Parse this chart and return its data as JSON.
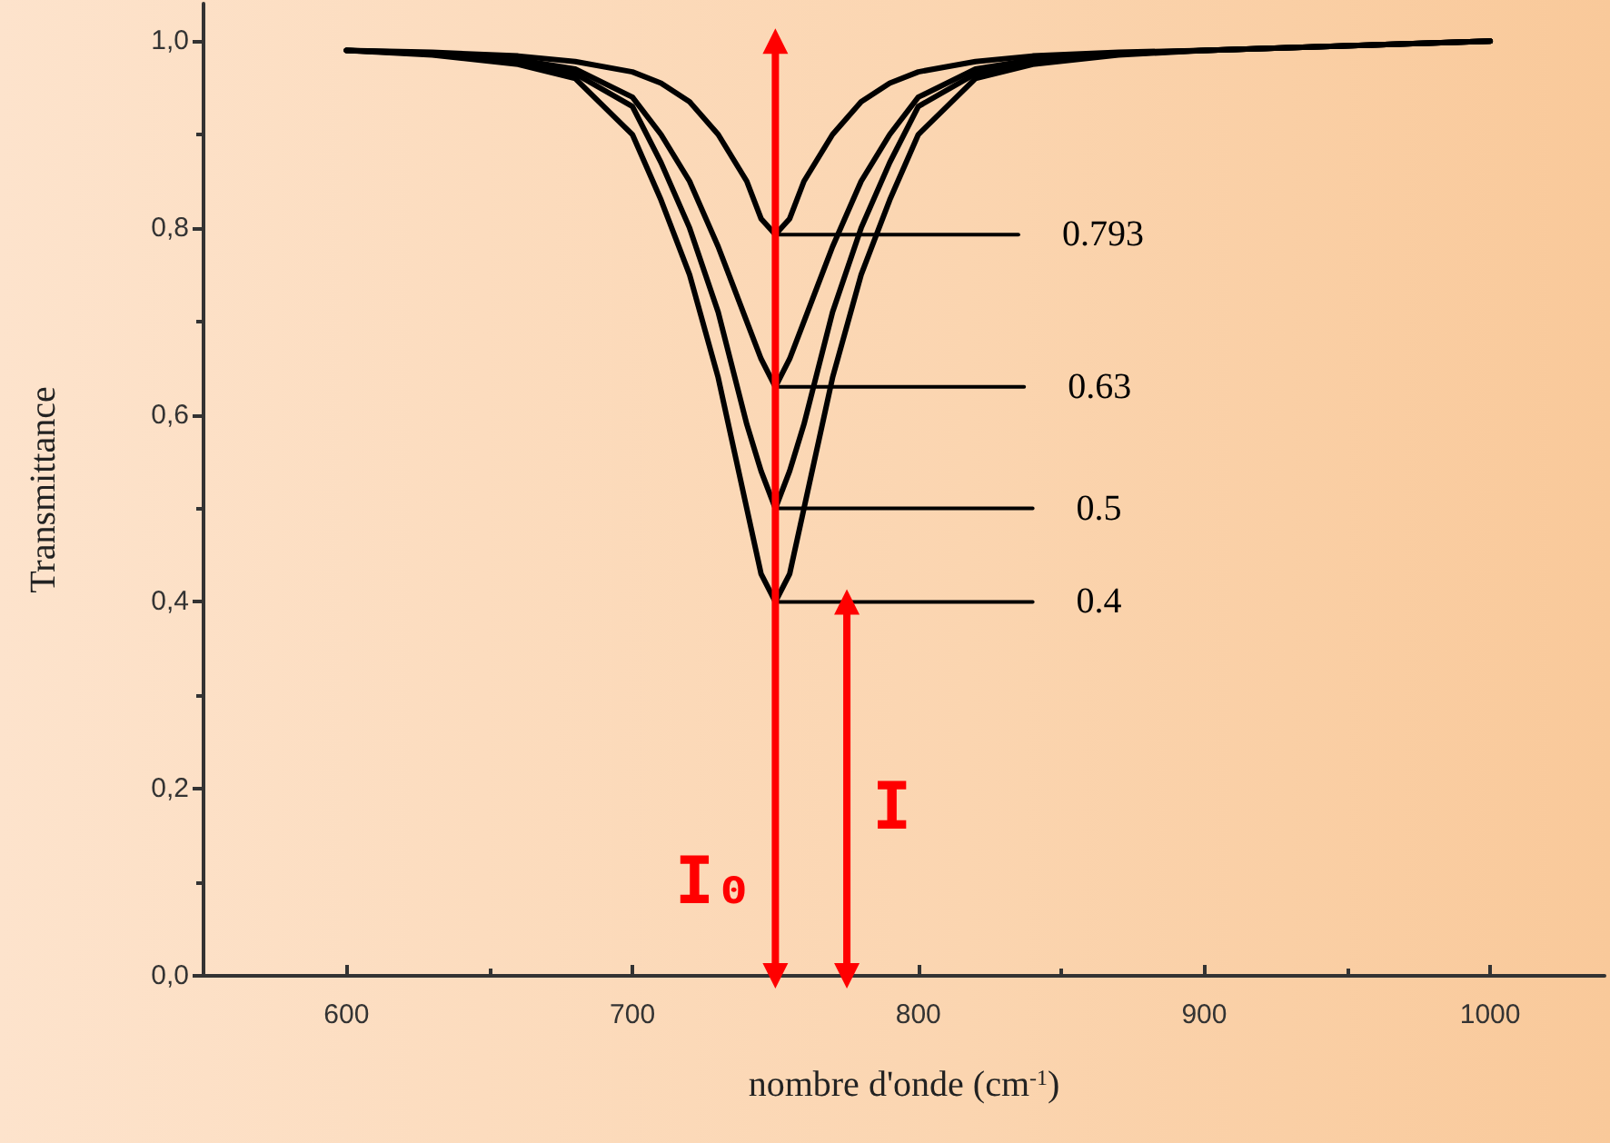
{
  "chart_data": {
    "type": "line",
    "xlabel": "nombre d'onde (cm$^{-1}$)",
    "ylabel": "Transmittance",
    "x": [
      600,
      630,
      660,
      680,
      700,
      710,
      720,
      730,
      735,
      740,
      745,
      750,
      755,
      760,
      765,
      770,
      780,
      790,
      800,
      820,
      840,
      870,
      900,
      1000
    ],
    "series": [
      {
        "color": "#000000",
        "values": [
          0.99,
          0.985,
          0.975,
          0.96,
          0.9,
          0.83,
          0.75,
          0.64,
          0.57,
          0.5,
          0.43,
          0.4,
          0.43,
          0.5,
          0.57,
          0.64,
          0.75,
          0.83,
          0.9,
          0.96,
          0.975,
          0.985,
          0.99,
          1.0
        ]
      },
      {
        "color": "#000000",
        "values": [
          0.99,
          0.986,
          0.977,
          0.965,
          0.93,
          0.87,
          0.8,
          0.71,
          0.65,
          0.59,
          0.54,
          0.5,
          0.54,
          0.59,
          0.65,
          0.71,
          0.8,
          0.87,
          0.93,
          0.965,
          0.977,
          0.986,
          0.99,
          1.0
        ]
      },
      {
        "color": "#000000",
        "values": [
          0.99,
          0.987,
          0.98,
          0.97,
          0.94,
          0.9,
          0.85,
          0.78,
          0.74,
          0.7,
          0.66,
          0.63,
          0.66,
          0.7,
          0.74,
          0.78,
          0.85,
          0.9,
          0.94,
          0.97,
          0.98,
          0.987,
          0.99,
          1.0
        ]
      },
      {
        "color": "#000000",
        "values": [
          0.99,
          0.988,
          0.984,
          0.978,
          0.967,
          0.955,
          0.935,
          0.9,
          0.875,
          0.85,
          0.81,
          0.793,
          0.81,
          0.85,
          0.875,
          0.9,
          0.935,
          0.955,
          0.967,
          0.978,
          0.984,
          0.988,
          0.99,
          1.0
        ]
      },
      {
        "color": "#000000",
        "x": [
          750,
          835
        ],
        "values": [
          0.793,
          0.793
        ],
        "value_labels": [
          null,
          "0.793"
        ]
      },
      {
        "color": "#000000",
        "x": [
          750,
          837
        ],
        "values": [
          0.63,
          0.63
        ],
        "value_labels": [
          null,
          "0.63"
        ]
      },
      {
        "color": "#000000",
        "x": [
          750,
          840
        ],
        "values": [
          0.5,
          0.5
        ],
        "value_labels": [
          null,
          "0.5"
        ]
      },
      {
        "color": "#000000",
        "x": [
          750,
          840
        ],
        "values": [
          0.4,
          0.4
        ],
        "value_labels": [
          null,
          "0.4"
        ]
      },
      {
        "name": "I₀",
        "color": "#ff0000",
        "x": [
          750,
          750
        ],
        "values": [
          0,
          1.0
        ],
        "marker": "triangle"
      },
      {
        "name": "I",
        "color": "#ff0000",
        "x": [
          775,
          775
        ],
        "values": [
          0,
          0.4
        ],
        "marker": "triangle"
      }
    ],
    "xlim": [
      550,
      1040
    ],
    "xticks": [
      600,
      700,
      800,
      900,
      1000
    ],
    "ylim": [
      0,
      1.04
    ],
    "yticks": [
      {
        "value": 0,
        "label": "0,0"
      },
      {
        "value": 0.2,
        "label": "0,2"
      },
      {
        "value": 0.4,
        "label": "0,4"
      },
      {
        "value": 0.6,
        "label": "0,6"
      },
      {
        "value": 0.8,
        "label": "0,8"
      },
      {
        "value": 1.0,
        "label": "1,0"
      }
    ],
    "grid": false,
    "legend": false,
    "marker": "none",
    "line_style": "solid"
  }
}
